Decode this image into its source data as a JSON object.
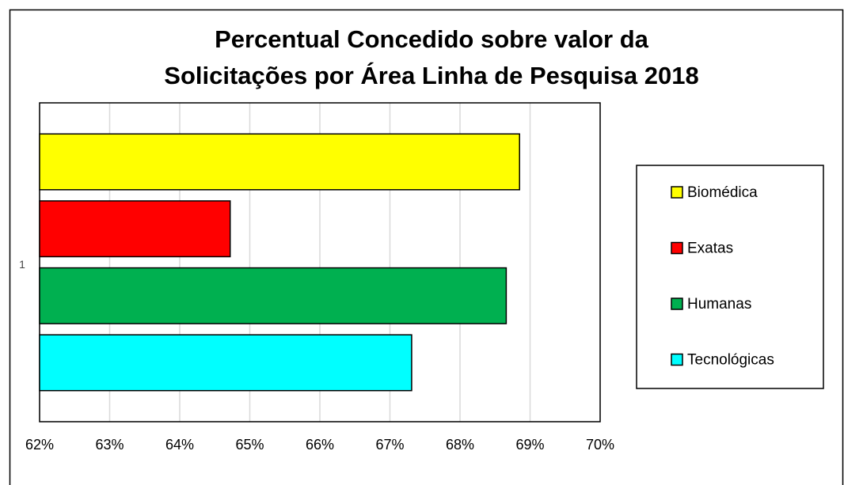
{
  "chart_data": {
    "type": "barh",
    "title": [
      "Percentual Concedido sobre valor da",
      "Solicitações por Área Linha de Pesquisa 2018"
    ],
    "categories": [
      "1"
    ],
    "series": [
      {
        "name": "Biomédica",
        "color": "#ffff00",
        "values": [
          68.85
        ]
      },
      {
        "name": "Exatas",
        "color": "#ff0000",
        "values": [
          64.72
        ]
      },
      {
        "name": "Humanas",
        "color": "#00b050",
        "values": [
          68.66
        ]
      },
      {
        "name": "Tecnológicas",
        "color": "#00ffff",
        "values": [
          67.31
        ]
      }
    ],
    "xlim": [
      62,
      70
    ],
    "xticks": [
      {
        "value": 62,
        "label": "62%"
      },
      {
        "value": 63,
        "label": "63%"
      },
      {
        "value": 64,
        "label": "64%"
      },
      {
        "value": 65,
        "label": "65%"
      },
      {
        "value": 66,
        "label": "66%"
      },
      {
        "value": 67,
        "label": "67%"
      },
      {
        "value": 68,
        "label": "68%"
      },
      {
        "value": 69,
        "label": "69%"
      },
      {
        "value": 70,
        "label": "70%"
      }
    ],
    "grid": true,
    "legend": "right"
  }
}
